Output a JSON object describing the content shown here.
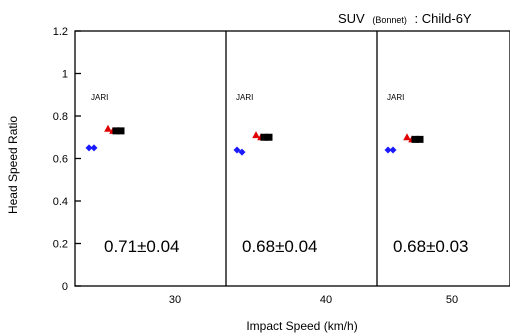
{
  "chart_data": {
    "type": "scatter",
    "title": "SUV (Bonnet) : Child-6Y",
    "title_main": "SUV",
    "title_paren": "(Bonnet)",
    "title_tail": ": Child-6Y",
    "xlabel": "Impact Speed (km/h)",
    "ylabel": "Head Speed Ratio",
    "ylim": [
      0,
      1.2
    ],
    "yticks": [
      0,
      0.2,
      0.4,
      0.6,
      0.8,
      1,
      1.2
    ],
    "ytick_labels": [
      "0",
      "0.2",
      "0.4",
      "0.6",
      "0.8",
      "1",
      "1.2"
    ],
    "grid": false,
    "panels": [
      {
        "speed_label": "30",
        "annotation": "JARI",
        "summary": "0.71±0.04",
        "points": [
          {
            "color": "#1a1aff",
            "marker": "diamond",
            "values": [
              0.65,
              0.65
            ]
          },
          {
            "color": "#e00000",
            "marker": "triangle",
            "values": [
              0.74,
              0.73
            ]
          },
          {
            "color": "#000000",
            "marker": "square",
            "values": [
              0.73,
              0.73
            ]
          }
        ]
      },
      {
        "speed_label": "40",
        "annotation": "JARI",
        "summary": "0.68±0.04",
        "points": [
          {
            "color": "#1a1aff",
            "marker": "diamond",
            "values": [
              0.64,
              0.63
            ]
          },
          {
            "color": "#e00000",
            "marker": "triangle",
            "values": [
              0.71,
              0.7
            ]
          },
          {
            "color": "#000000",
            "marker": "square",
            "values": [
              0.7,
              0.7
            ]
          }
        ]
      },
      {
        "speed_label": "50",
        "annotation": "JARI",
        "summary": "0.68±0.03",
        "points": [
          {
            "color": "#1a1aff",
            "marker": "diamond",
            "values": [
              0.64,
              0.64
            ]
          },
          {
            "color": "#e00000",
            "marker": "triangle",
            "values": [
              0.7,
              0.69
            ]
          },
          {
            "color": "#000000",
            "marker": "square",
            "values": [
              0.69,
              0.69
            ]
          }
        ]
      }
    ]
  }
}
